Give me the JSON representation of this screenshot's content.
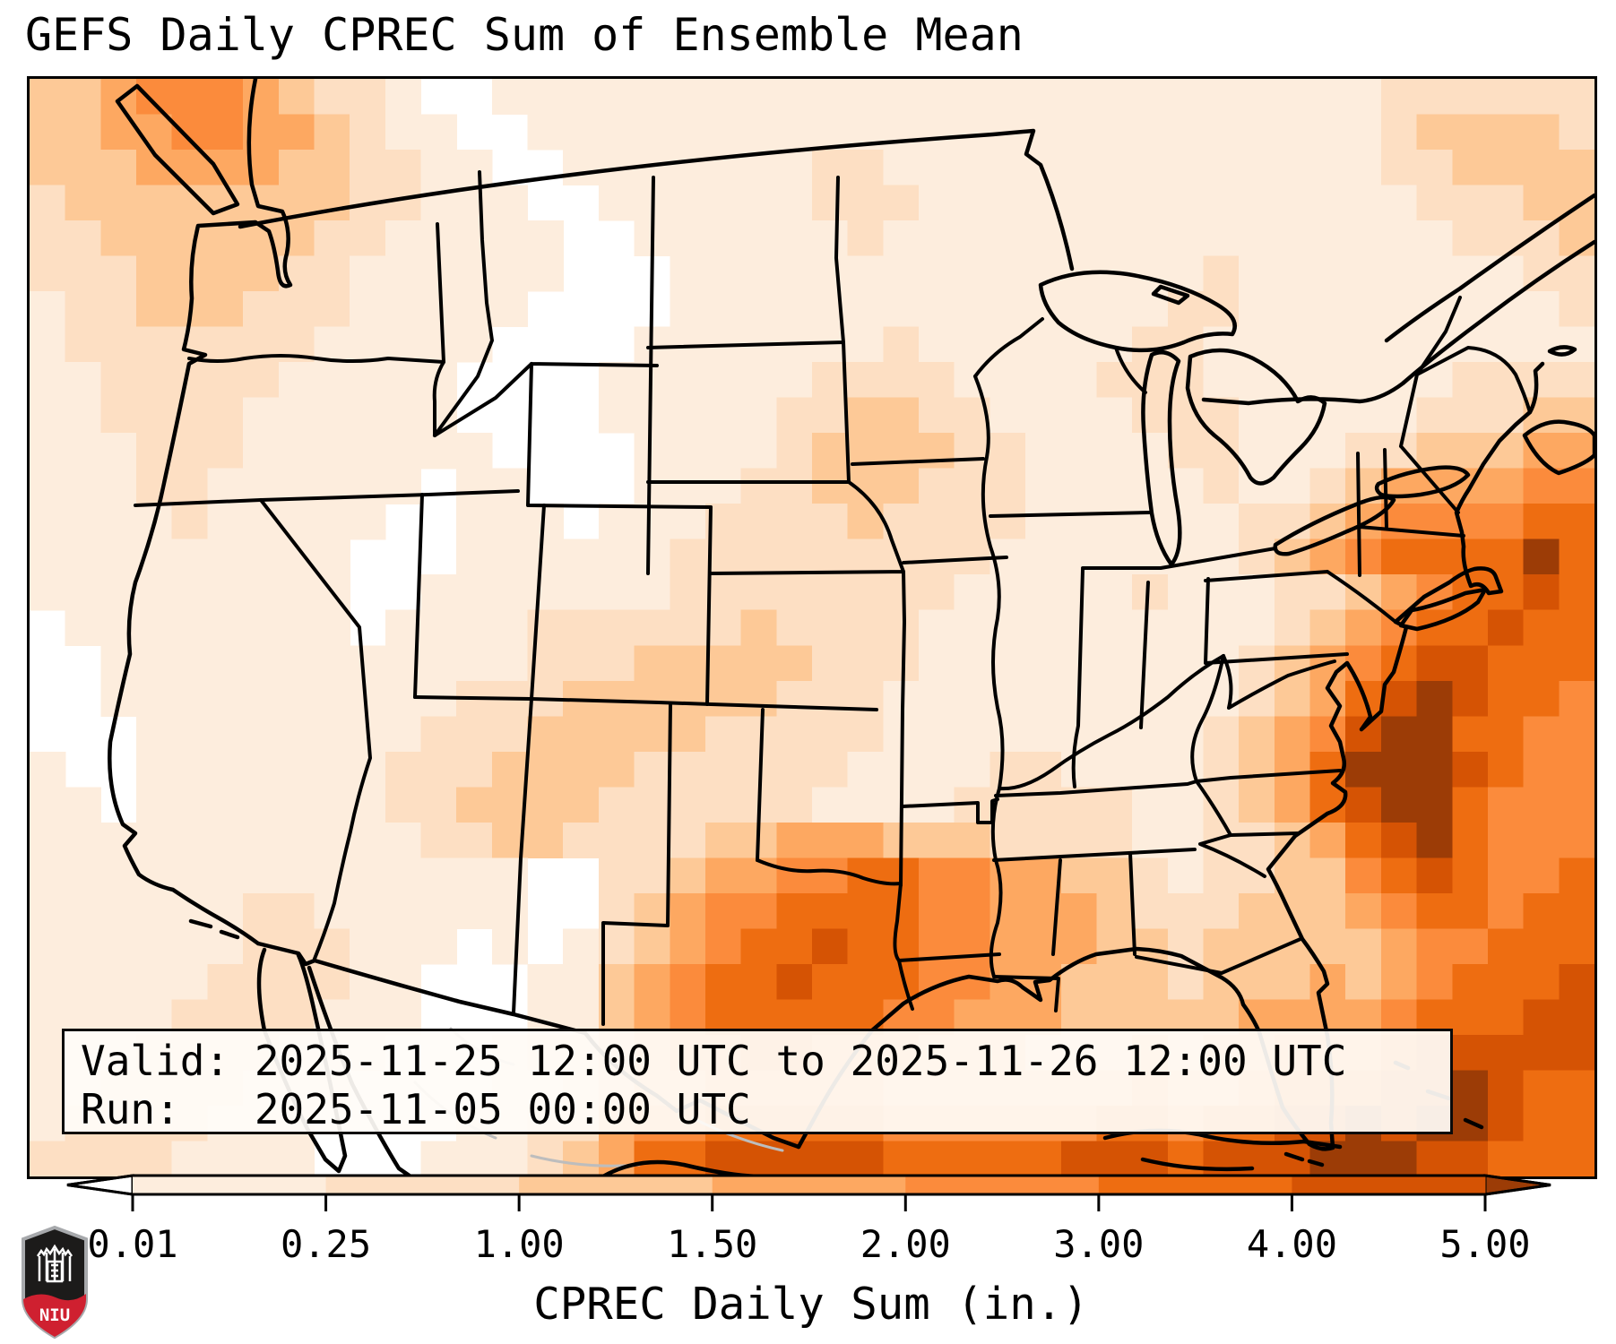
{
  "title": "GEFS Daily CPREC Sum of Ensemble Mean",
  "info_box": {
    "valid_line": "Valid: 2025-11-25 12:00 UTC to 2025-11-26 12:00 UTC",
    "run_line": "Run:   2025-11-05 00:00 UTC"
  },
  "colorbar": {
    "label": "CPREC Daily Sum (in.)",
    "tick_labels": [
      "0.01",
      "0.25",
      "1.00",
      "1.50",
      "2.00",
      "3.00",
      "4.00",
      "5.00"
    ],
    "segment_colors": [
      "#fdeddd",
      "#fddfc3",
      "#fdc997",
      "#fda861",
      "#fb8b3c",
      "#ee6d11",
      "#d55304"
    ],
    "under_color": "#ffffff",
    "over_color": "#9c3c06",
    "outline_color": "#000000"
  },
  "logo": {
    "text": "NIU",
    "shield_dark": "#1c1b1a",
    "shield_red": "#cf2030",
    "shield_trim": "#a7a9ac"
  },
  "chart_data": {
    "type": "heatmap",
    "title": "GEFS Daily CPREC Sum of Ensemble Mean",
    "units": "in.",
    "colorbar_label": "CPREC Daily Sum (in.)",
    "valid": "2025-11-25 12:00 UTC to 2025-11-26 12:00 UTC",
    "run": "2025-11-05 00:00 UTC",
    "levels": [
      0.01,
      0.25,
      1.0,
      1.5,
      2.0,
      3.0,
      4.0,
      5.0
    ],
    "palette": [
      "#ffffff",
      "#fdeddd",
      "#fddfc3",
      "#fdc997",
      "#fda861",
      "#fb8b3c",
      "#ee6d11",
      "#d55304",
      "#9c3c06"
    ],
    "legend": "grid values are color-level indices 0-8; 0 = below 0.01 in (white), 8 = above 5.00 in",
    "grid_cols": 44,
    "grid_rows": 31,
    "grid": [
      "3345 5543 2210 0111 1111 1111 1111 1111 1111 1122 2222",
      "3344 5544 3211 0011 1111 1111 1111 1111 1111 1123 3332",
      "3334 4443 3221 1001 1111 1122 1111 1111 1111 1122 3333",
      "2333 3333 3221 1100 1111 1122 2111 1111 1111 1112 2233",
      "2233 3333 2211 1110 0111 1112 1111 1111 1111 1111 2223",
      "2223 3332 2111 1110 0011 1111 1111 1111 1211 1111 1122",
      "1223 3322 2111 1100 0011 1111 1111 1111 2211 1111 1112",
      "1222 2222 1111 1000 0111 1111 2111 1112 2111 1111 1111",
      "1122 2221 1111 0000 1111 1122 2211 1122 2111 1111 2222",
      "1122 2211 1111 0000 1111 1223 3221 1112 2211 1112 2233",
      "1112 2211 1111 1000 0111 1233 3322 1111 2211 1223 3344",
      "1112 2111 1110 1100 0111 2233 3222 1111 1211 2344 4455",
      "1111 2111 1100 1110 1112 2223 2222 1111 1122 3455 5566",
      "1111 1111 1000 1111 1122 2222 2221 1111 1123 4566 6686",
      "1111 1111 1001 1111 1122 2222 2211 1112 1112 2345 6676",
      "0111 1111 1011 1122 2222 3222 2111 1111 1112 3456 6766",
      "0011 1111 1111 1122 2333 3322 2111 1111 1123 4567 7666",
      "0011 1111 1111 2223 3333 3222 1111 1111 1123 4678 7665",
      "0001 1111 1112 2233 3332 2222 1111 1111 1234 5788 6655",
      "1001 1111 1122 2333 3222 2221 1112 2111 1234 6888 7655",
      "1101 1111 1122 3333 2222 2211 1122 2221 1234 6788 6555",
      "1111 1111 1112 2332 2223 3444 3332 2221 1223 4678 6555",
      "1111 1111 1111 1100 2234 4556 6554 4332 1223 3567 6556",
      "1111 1122 1111 1100 2345 5666 6554 4432 2233 3456 6566",
      "1111 1122 2111 0101 2345 6676 6554 4433 2333 3345 5666",
      "1111 1222 2110 0011 3456 6766 6554 4333 2333 4345 6667",
      "1111 2222 1110 0011 3456 6666 5544 4333 3344 4456 6677",
      "1112 2221 1100 0122 3455 6655 5444 3334 3445 5567 7777",
      "1122 2211 1000 0112 3445 5555 4444 4445 4456 6677 8766",
      "1222 2111 0000 1122 4556 6666 5555 5566 5667 7878 8766",
      "2222 1111 0001 1123 4667 7777 6666 6777 6777 8887 7666"
    ]
  }
}
